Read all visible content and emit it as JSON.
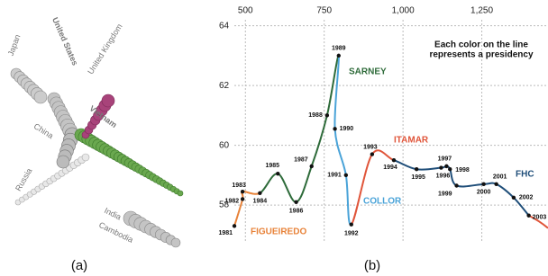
{
  "panel_labels": [
    "(a)",
    "(b)"
  ],
  "diagram": {
    "labels": [
      "Japan",
      "United States",
      "United Kingdom",
      "Vietnam",
      "China",
      "Russia",
      "India",
      "Cambodia"
    ]
  },
  "chart_data": {
    "type": "line",
    "xlim": [
      422,
      1460
    ],
    "ylim": [
      56.8,
      64.5
    ],
    "xticks": [
      500,
      750,
      {
        "value": 1000,
        "label": "1,000"
      },
      {
        "value": 1250,
        "label": "1,250"
      }
    ],
    "yticks": [
      58,
      60,
      62,
      64
    ],
    "grid": true,
    "annotation": [
      "Each color on the line",
      "represents a presidency"
    ],
    "series": [
      {
        "name": "FIGUEIREDO",
        "color": "#e8833a",
        "labels": [
          "1981",
          "1982",
          "1983",
          "1984"
        ],
        "x": [
          465,
          491,
          491,
          546
        ],
        "values": [
          57.3,
          58.2,
          58.45,
          58.4
        ]
      },
      {
        "name": "SARNEY",
        "color": "#2e6b3a",
        "labels": [
          "1985",
          "1986",
          "1987",
          "1988",
          "1989"
        ],
        "x": [
          603,
          661,
          710,
          759,
          796
        ],
        "values": [
          59.05,
          58.1,
          59.3,
          61.0,
          63.0
        ]
      },
      {
        "name": "COLLOR",
        "color": "#4aa3d8",
        "labels": [
          "1990",
          "1991",
          "1992"
        ],
        "x": [
          784,
          819,
          836
        ],
        "values": [
          60.55,
          59.0,
          57.35
        ]
      },
      {
        "name": "ITAMAR",
        "color": "#e0553a",
        "labels": [
          "1993",
          "1994"
        ],
        "x": [
          902,
          971
        ],
        "values": [
          59.7,
          59.5
        ]
      },
      {
        "name": "FHC",
        "color": "#1f4e79",
        "labels": [
          "1995",
          "1996",
          "1997",
          "1998",
          "1999",
          "2000",
          "2001",
          "2002",
          "2003"
        ],
        "x": [
          1043,
          1121,
          1138,
          1149,
          1170,
          1256,
          1296,
          1351,
          1399
        ],
        "values": [
          59.2,
          59.25,
          59.3,
          59.2,
          58.65,
          58.7,
          58.7,
          58.25,
          57.65
        ]
      }
    ]
  }
}
